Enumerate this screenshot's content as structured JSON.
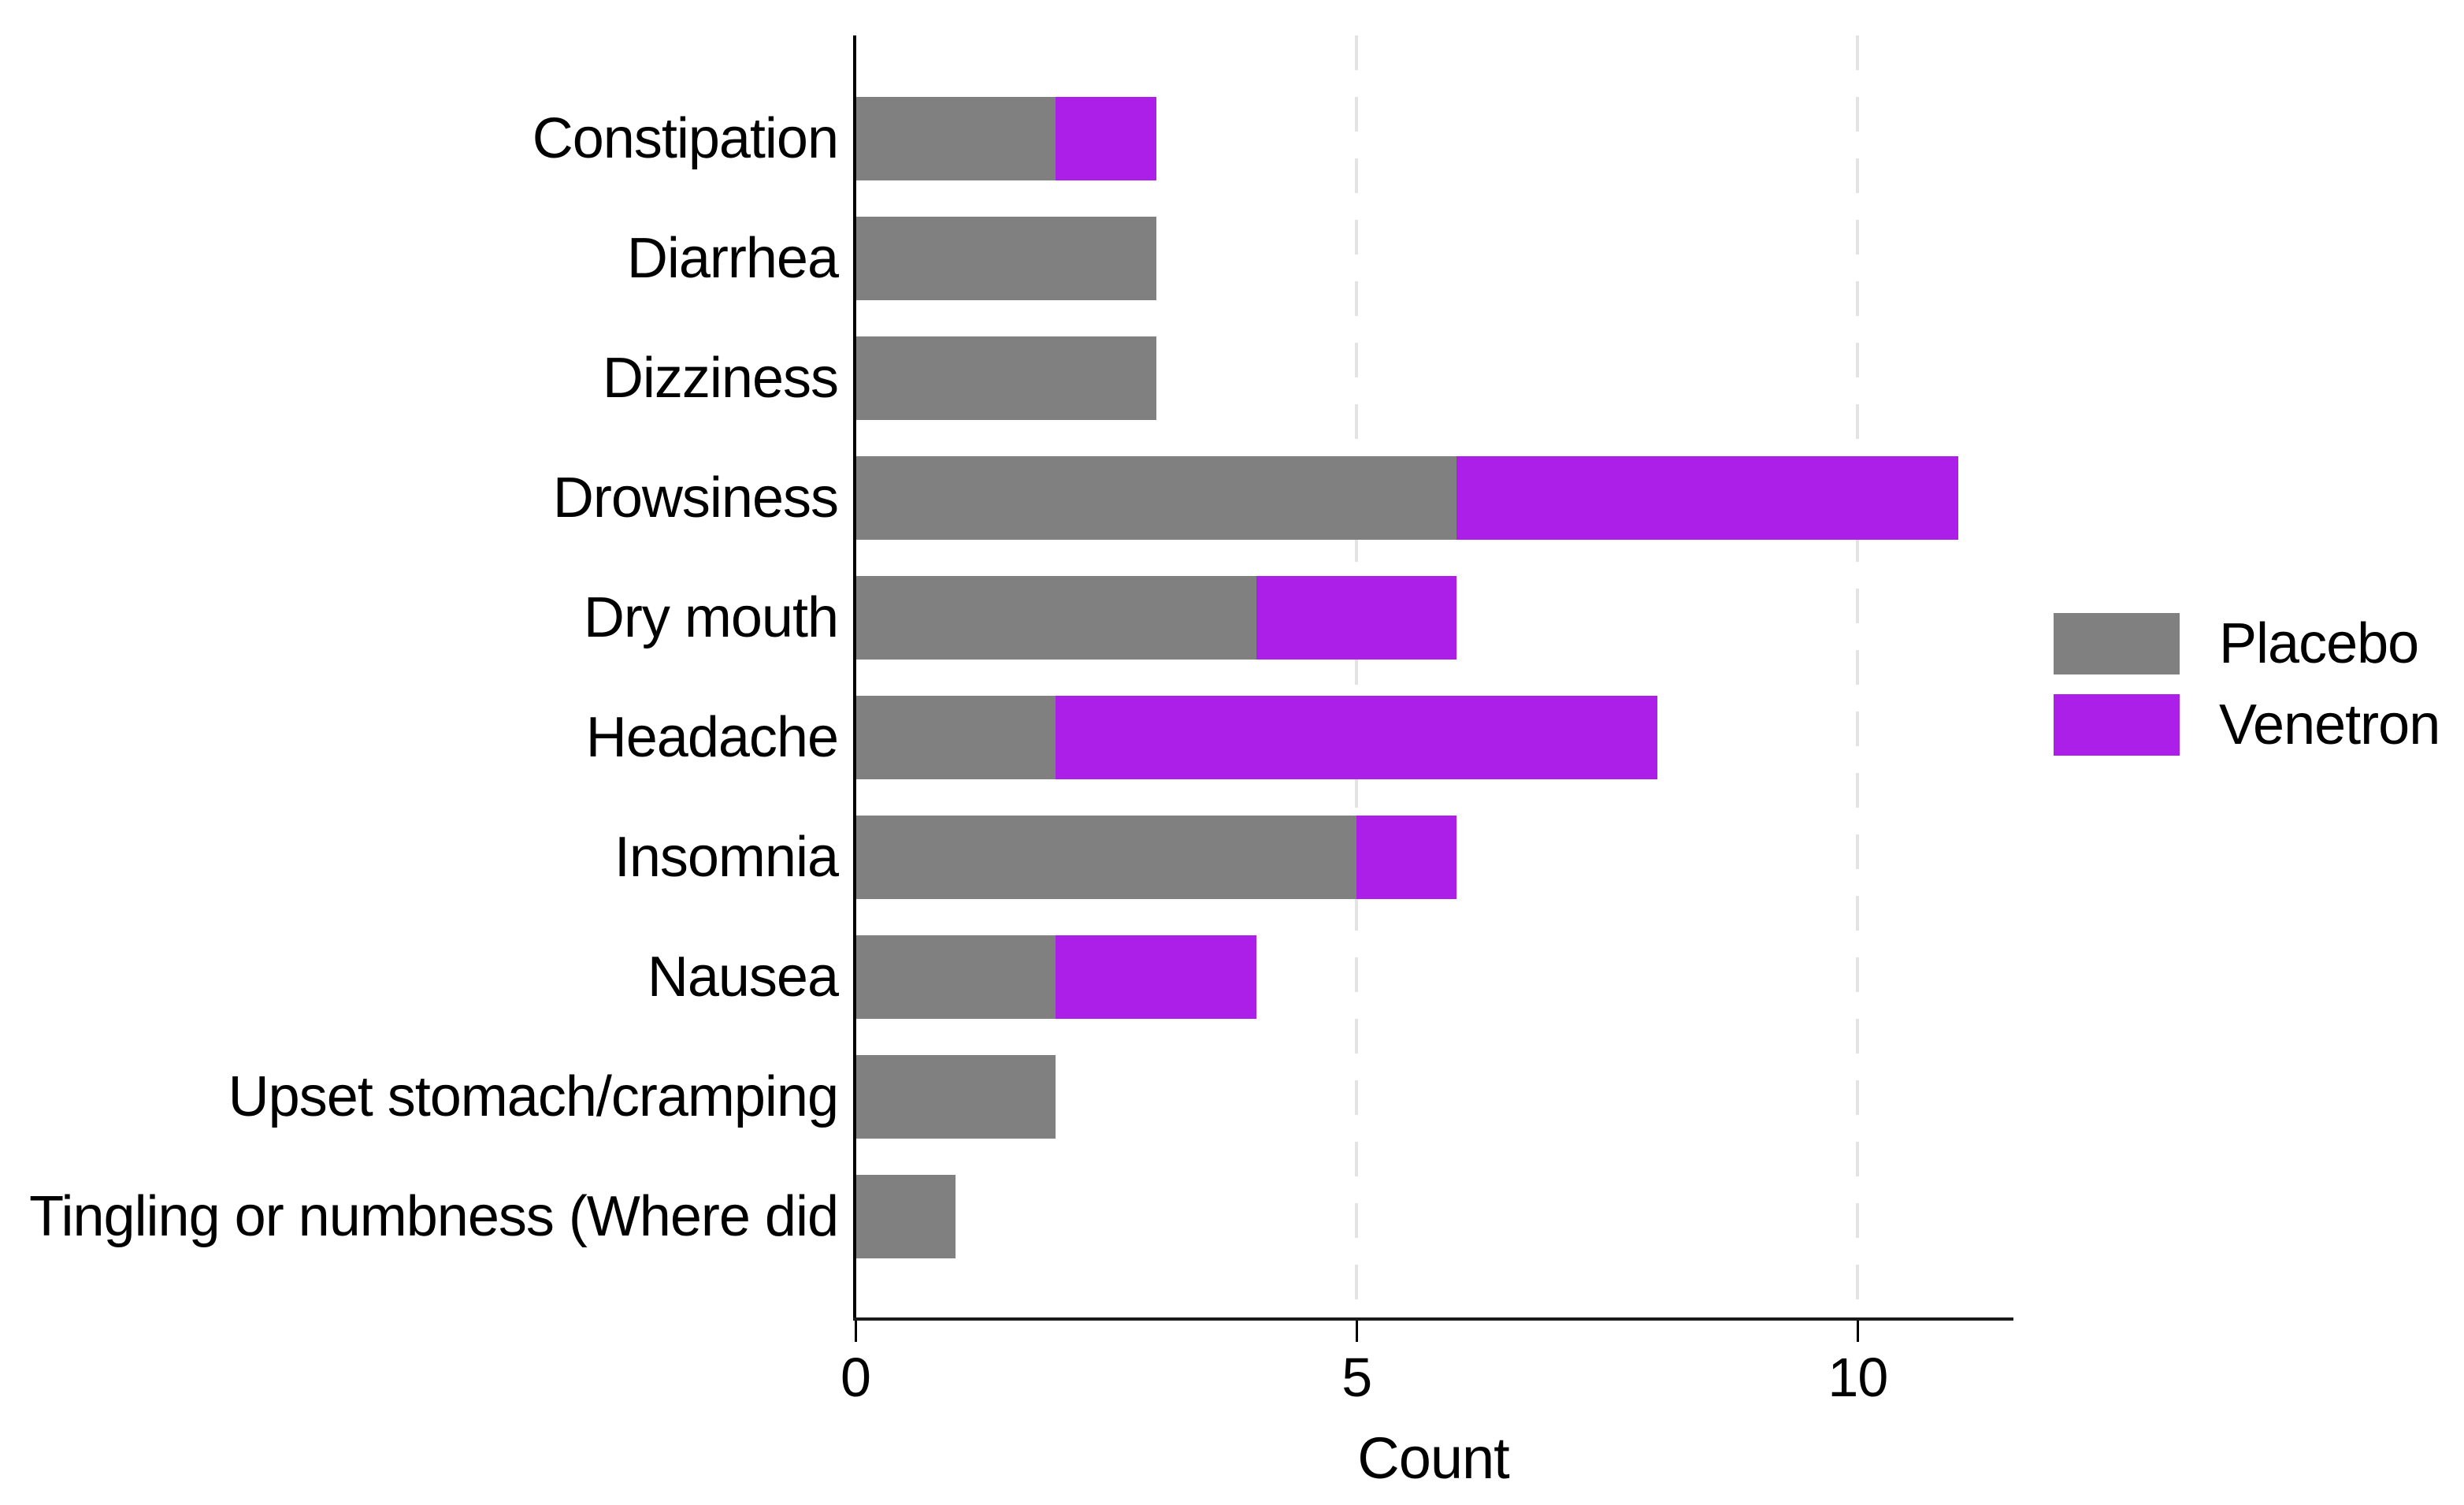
{
  "chart_data": {
    "type": "bar",
    "orientation": "horizontal",
    "stacked": true,
    "title": "",
    "xlabel": "Count",
    "ylabel": "",
    "categories": [
      "Constipation",
      "Diarrhea",
      "Dizziness",
      "Drowsiness",
      "Dry mouth",
      "Headache",
      "Insomnia",
      "Nausea",
      "Upset stomach/cramping",
      "Tingling or numbness (Where did"
    ],
    "series": [
      {
        "name": "Placebo",
        "color": "#808080",
        "values": [
          2,
          3,
          3,
          6,
          4,
          2,
          5,
          2,
          2,
          1
        ]
      },
      {
        "name": "Venetron",
        "color": "#AC1FE8",
        "values": [
          1,
          0,
          0,
          5,
          2,
          6,
          1,
          2,
          0,
          0
        ]
      }
    ],
    "totals": [
      3,
      3,
      3,
      11,
      6,
      8,
      6,
      4,
      2,
      1
    ],
    "x_ticks": [
      "0",
      "5",
      "10"
    ],
    "x_tick_values": [
      0,
      5,
      10
    ],
    "xlim": [
      0,
      11.53
    ],
    "grid": {
      "style": "dashed-vertical",
      "at": [
        5,
        10
      ],
      "color": "#e3e3e3"
    },
    "legend_position": "right",
    "axis_color": "#000000",
    "background": "#ffffff"
  }
}
